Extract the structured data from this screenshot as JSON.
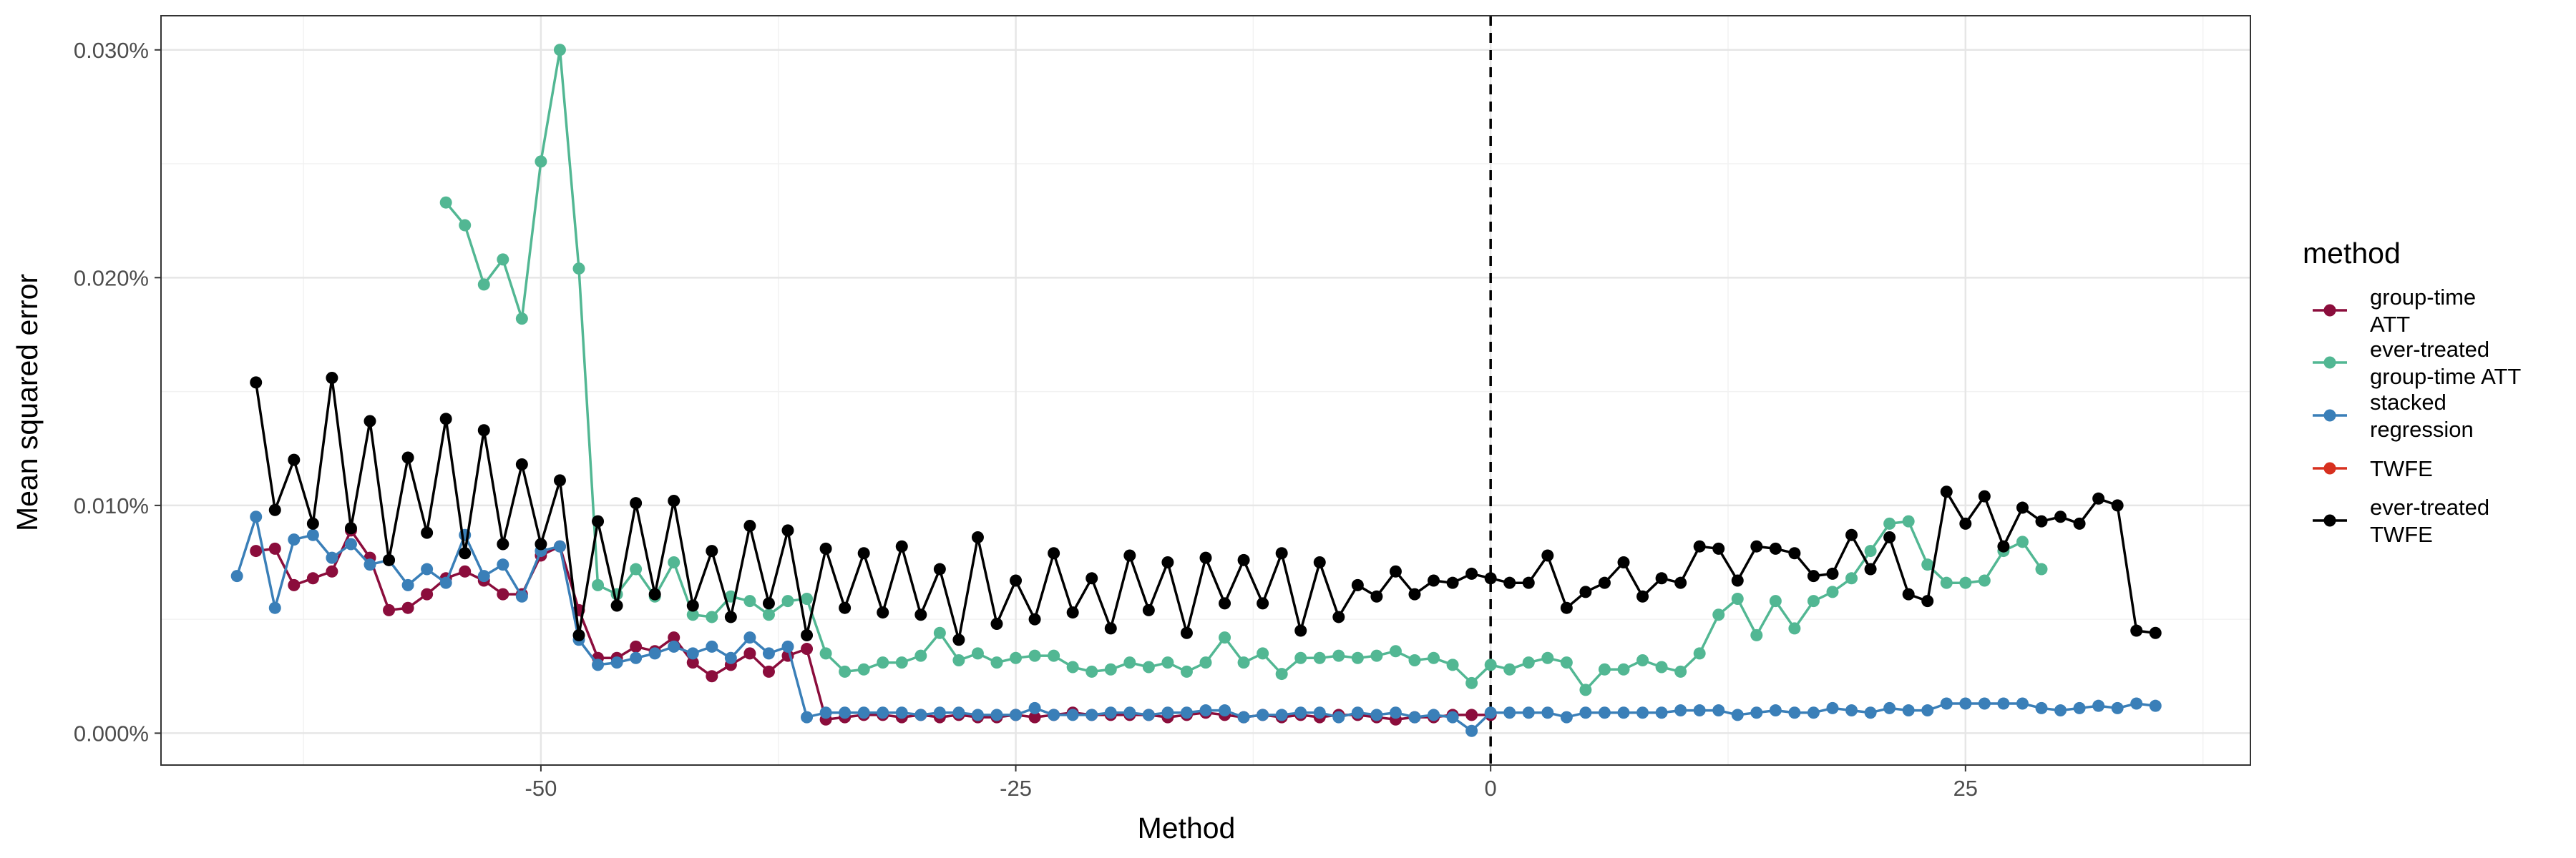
{
  "chart_data": {
    "type": "line",
    "title": "",
    "xlabel": "Method",
    "ylabel": "Mean squared error",
    "xlim": [
      -70,
      40
    ],
    "ylim": [
      -0.0014,
      0.0315
    ],
    "x_ticks": [
      -50,
      -25,
      0,
      25
    ],
    "x_tick_labels": [
      "-50",
      "-25",
      "0",
      "25"
    ],
    "y_ticks": [
      0,
      0.01,
      0.02,
      0.03
    ],
    "y_tick_labels": [
      "0.000%",
      "0.010%",
      "0.020%",
      "0.030%"
    ],
    "vline": 0,
    "legend": {
      "title": "method",
      "position": "right",
      "entries": [
        {
          "name": "group-time ATT",
          "lines": [
            "group-time",
            "ATT"
          ]
        },
        {
          "name": "ever-treated group-time ATT",
          "lines": [
            "ever-treated",
            "group-time ATT"
          ]
        },
        {
          "name": "stacked regression",
          "lines": [
            "stacked",
            "regression"
          ]
        },
        {
          "name": "TWFE",
          "lines": [
            "TWFE"
          ]
        },
        {
          "name": "ever-treated TWFE",
          "lines": [
            "ever-treated",
            "TWFE"
          ]
        }
      ]
    },
    "series": [
      {
        "name": "ever-treated group-time ATT",
        "color": "#52b793",
        "x": [
          -55,
          -54,
          -53,
          -52,
          -51,
          -50,
          -49,
          -48,
          -47,
          -46,
          -45,
          -44,
          -43,
          -42,
          -41,
          -40,
          -39,
          -38,
          -37,
          -36,
          -35,
          -34,
          -33,
          -32,
          -31,
          -30,
          -29,
          -28,
          -27,
          -26,
          -25,
          -24,
          -23,
          -22,
          -21,
          -20,
          -19,
          -18,
          -17,
          -16,
          -15,
          -14,
          -13,
          -12,
          -11,
          -10,
          -9,
          -8,
          -7,
          -6,
          -5,
          -4,
          -3,
          -2,
          -1,
          0,
          1,
          2,
          3,
          4,
          5,
          6,
          7,
          8,
          9,
          10,
          11,
          12,
          13,
          14,
          15,
          16,
          17,
          18,
          19,
          20,
          21,
          22,
          23,
          24,
          25,
          26,
          27,
          28,
          29
        ],
        "values": [
          0.0233,
          0.0223,
          0.0197,
          0.0208,
          0.0182,
          0.0251,
          0.03,
          0.0204,
          0.0065,
          0.0061,
          0.0072,
          0.006,
          0.0075,
          0.0052,
          0.0051,
          0.006,
          0.0058,
          0.0052,
          0.0058,
          0.0059,
          0.0035,
          0.0027,
          0.0028,
          0.0031,
          0.0031,
          0.0034,
          0.0044,
          0.0032,
          0.0035,
          0.0031,
          0.0033,
          0.0034,
          0.0034,
          0.0029,
          0.0027,
          0.0028,
          0.0031,
          0.0029,
          0.0031,
          0.0027,
          0.0031,
          0.0042,
          0.0031,
          0.0035,
          0.0026,
          0.0033,
          0.0033,
          0.0034,
          0.0033,
          0.0034,
          0.0036,
          0.0032,
          0.0033,
          0.003,
          0.0022,
          0.003,
          0.0028,
          0.0031,
          0.0033,
          0.0031,
          0.0019,
          0.0028,
          0.0028,
          0.0032,
          0.0029,
          0.0027,
          0.0035,
          0.0052,
          0.0059,
          0.0043,
          0.0058,
          0.0046,
          0.0058,
          0.0062,
          0.0068,
          0.008,
          0.0092,
          0.0093,
          0.0074,
          0.0066,
          0.0066,
          0.0067,
          0.008,
          0.0084,
          0.0072
        ]
      },
      {
        "name": "group-time ATT",
        "color": "#8b0d3c",
        "x": [
          -65,
          -64,
          -63,
          -62,
          -61,
          -60,
          -59,
          -58,
          -57,
          -56,
          -55,
          -54,
          -53,
          -52,
          -51,
          -50,
          -49,
          -48,
          -47,
          -46,
          -45,
          -44,
          -43,
          -42,
          -41,
          -40,
          -39,
          -38,
          -37,
          -36,
          -35,
          -34,
          -33,
          -32,
          -31,
          -30,
          -29,
          -28,
          -27,
          -26,
          -25,
          -24,
          -23,
          -22,
          -21,
          -20,
          -19,
          -18,
          -17,
          -16,
          -15,
          -14,
          -13,
          -12,
          -11,
          -10,
          -9,
          -8,
          -7,
          -6,
          -5,
          -4,
          -3,
          -2,
          -1,
          0
        ],
        "values": [
          0.008,
          0.0081,
          0.0065,
          0.0068,
          0.0071,
          0.0089,
          0.0077,
          0.0054,
          0.0055,
          0.0061,
          0.0068,
          0.0071,
          0.0067,
          0.0061,
          0.0061,
          0.0078,
          0.0082,
          0.0054,
          0.0033,
          0.0033,
          0.0038,
          0.0036,
          0.0042,
          0.0031,
          0.0025,
          0.003,
          0.0035,
          0.0027,
          0.0034,
          0.0037,
          0.0006,
          0.0007,
          0.0008,
          0.0008,
          0.0007,
          0.0008,
          0.0007,
          0.0008,
          0.0007,
          0.0007,
          0.0008,
          0.0007,
          0.0008,
          0.0009,
          0.0008,
          0.0008,
          0.0008,
          0.0008,
          0.0007,
          0.0008,
          0.0009,
          0.0008,
          0.0007,
          0.0008,
          0.0007,
          0.0008,
          0.0007,
          0.0008,
          0.0008,
          0.0007,
          0.0006,
          0.0007,
          0.0007,
          0.0008,
          0.0008,
          0.0008
        ]
      },
      {
        "name": "stacked regression",
        "color": "#3a7fb8",
        "x": [
          -66,
          -65,
          -64,
          -63,
          -62,
          -61,
          -60,
          -59,
          -58,
          -57,
          -56,
          -55,
          -54,
          -53,
          -52,
          -51,
          -50,
          -49,
          -48,
          -47,
          -46,
          -45,
          -44,
          -43,
          -42,
          -41,
          -40,
          -39,
          -38,
          -37,
          -36,
          -35,
          -34,
          -33,
          -32,
          -31,
          -30,
          -29,
          -28,
          -27,
          -26,
          -25,
          -24,
          -23,
          -22,
          -21,
          -20,
          -19,
          -18,
          -17,
          -16,
          -15,
          -14,
          -13,
          -12,
          -11,
          -10,
          -9,
          -8,
          -7,
          -6,
          -5,
          -4,
          -3,
          -2,
          -1,
          0,
          1,
          2,
          3,
          4,
          5,
          6,
          7,
          8,
          9,
          10,
          11,
          12,
          13,
          14,
          15,
          16,
          17,
          18,
          19,
          20,
          21,
          22,
          23,
          24,
          25,
          26,
          27,
          28,
          29,
          30,
          31,
          32,
          33,
          34,
          35
        ],
        "values": [
          0.0069,
          0.0095,
          0.0055,
          0.0085,
          0.0087,
          0.0077,
          0.0083,
          0.0074,
          0.0076,
          0.0065,
          0.0072,
          0.0066,
          0.0087,
          0.0069,
          0.0074,
          0.006,
          0.008,
          0.0082,
          0.0041,
          0.003,
          0.0031,
          0.0033,
          0.0035,
          0.0038,
          0.0035,
          0.0038,
          0.0033,
          0.0042,
          0.0035,
          0.0038,
          0.0007,
          0.0009,
          0.0009,
          0.0009,
          0.0009,
          0.0009,
          0.0008,
          0.0009,
          0.0009,
          0.0008,
          0.0008,
          0.0008,
          0.0011,
          0.0008,
          0.0008,
          0.0008,
          0.0009,
          0.0009,
          0.0008,
          0.0009,
          0.0009,
          0.001,
          0.001,
          0.0007,
          0.0008,
          0.0008,
          0.0009,
          0.0009,
          0.0007,
          0.0009,
          0.0008,
          0.0009,
          0.0007,
          0.0008,
          0.0007,
          0.0001,
          0.0009,
          0.0009,
          0.0009,
          0.0009,
          0.0007,
          0.0009,
          0.0009,
          0.0009,
          0.0009,
          0.0009,
          0.001,
          0.001,
          0.001,
          0.0008,
          0.0009,
          0.001,
          0.0009,
          0.0009,
          0.0011,
          0.001,
          0.0009,
          0.0011,
          0.001,
          0.001,
          0.0013,
          0.0013,
          0.0013,
          0.0013,
          0.0013,
          0.0011,
          0.001,
          0.0011,
          0.0012,
          0.0011,
          0.0013,
          0.0012
        ]
      },
      {
        "name": "TWFE",
        "color": "#d7301f",
        "x": [],
        "values": []
      },
      {
        "name": "ever-treated TWFE",
        "color": "#000000",
        "x": [
          -65,
          -64,
          -63,
          -62,
          -61,
          -60,
          -59,
          -58,
          -57,
          -56,
          -55,
          -54,
          -53,
          -52,
          -51,
          -50,
          -49,
          -48,
          -47,
          -46,
          -45,
          -44,
          -43,
          -42,
          -41,
          -40,
          -39,
          -38,
          -37,
          -36,
          -35,
          -34,
          -33,
          -32,
          -31,
          -30,
          -29,
          -28,
          -27,
          -26,
          -25,
          -24,
          -23,
          -22,
          -21,
          -20,
          -19,
          -18,
          -17,
          -16,
          -15,
          -14,
          -13,
          -12,
          -11,
          -10,
          -9,
          -8,
          -7,
          -6,
          -5,
          -4,
          -3,
          -2,
          -1,
          0,
          1,
          2,
          3,
          4,
          5,
          6,
          7,
          8,
          9,
          10,
          11,
          12,
          13,
          14,
          15,
          16,
          17,
          18,
          19,
          20,
          21,
          22,
          23,
          24,
          25,
          26,
          27,
          28,
          29,
          30,
          31,
          32,
          33,
          34,
          35
        ],
        "values": [
          0.0154,
          0.0098,
          0.012,
          0.0092,
          0.0156,
          0.009,
          0.0137,
          0.0076,
          0.0121,
          0.0088,
          0.0138,
          0.0079,
          0.0133,
          0.0083,
          0.0118,
          0.0083,
          0.0111,
          0.0043,
          0.0093,
          0.0056,
          0.0101,
          0.0061,
          0.0102,
          0.0056,
          0.008,
          0.0051,
          0.0091,
          0.0057,
          0.0089,
          0.0043,
          0.0081,
          0.0055,
          0.0079,
          0.0053,
          0.0082,
          0.0052,
          0.0072,
          0.0041,
          0.0086,
          0.0048,
          0.0067,
          0.005,
          0.0079,
          0.0053,
          0.0068,
          0.0046,
          0.0078,
          0.0054,
          0.0075,
          0.0044,
          0.0077,
          0.0057,
          0.0076,
          0.0057,
          0.0079,
          0.0045,
          0.0075,
          0.0051,
          0.0065,
          0.006,
          0.0071,
          0.0061,
          0.0067,
          0.0066,
          0.007,
          0.0068,
          0.0066,
          0.0066,
          0.0078,
          0.0055,
          0.0062,
          0.0066,
          0.0075,
          0.006,
          0.0068,
          0.0066,
          0.0082,
          0.0081,
          0.0067,
          0.0082,
          0.0081,
          0.0079,
          0.0069,
          0.007,
          0.0087,
          0.0072,
          0.0086,
          0.0061,
          0.0058,
          0.0106,
          0.0092,
          0.0104,
          0.0082,
          0.0099,
          0.0093,
          0.0095,
          0.0092,
          0.0103,
          0.01,
          0.0045,
          0.0044
        ]
      }
    ]
  }
}
